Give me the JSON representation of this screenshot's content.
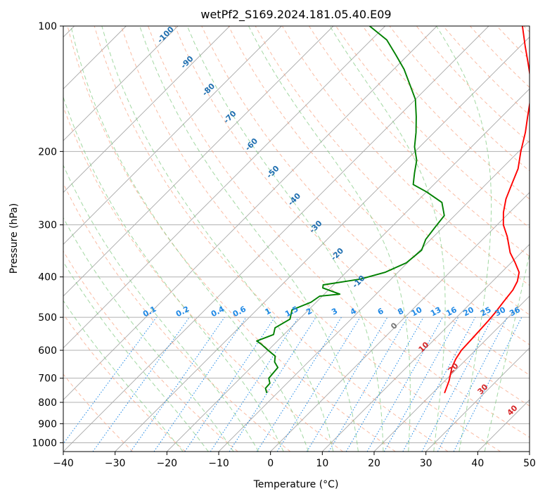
{
  "chart_data": {
    "type": "line",
    "title": "wetPf2_S169.2024.181.05.40.E09",
    "xlabel": "Temperature (°C)",
    "ylabel": "Pressure (hPa)",
    "xlim": [
      -40,
      50
    ],
    "ylim": [
      1050,
      100
    ],
    "y_scale": "log",
    "x_ticks": [
      -40,
      -30,
      -20,
      -10,
      0,
      10,
      20,
      30,
      40,
      50
    ],
    "y_ticks": [
      100,
      200,
      300,
      400,
      500,
      600,
      700,
      800,
      900,
      1000
    ],
    "grid": true,
    "skew": "skew-T",
    "series": [
      {
        "color": "#ff0000",
        "points": [
          [
            22.3,
            760
          ],
          [
            20.8,
            710
          ],
          [
            18.8,
            660
          ],
          [
            17.9,
            630
          ],
          [
            17.3,
            600
          ],
          [
            17.1,
            560
          ],
          [
            16.8,
            510
          ],
          [
            16.6,
            490
          ],
          [
            16.1,
            460
          ],
          [
            15.6,
            430
          ],
          [
            14.8,
            410
          ],
          [
            13.4,
            390
          ],
          [
            10.8,
            370
          ],
          [
            7.9,
            350
          ],
          [
            4.2,
            320
          ],
          [
            1.2,
            300
          ],
          [
            -1.2,
            280
          ],
          [
            -3.3,
            260
          ],
          [
            -5.0,
            240
          ],
          [
            -6.8,
            220
          ],
          [
            -9.6,
            200
          ],
          [
            -12.4,
            180
          ],
          [
            -15.0,
            165
          ],
          [
            -17.8,
            150
          ],
          [
            -21.4,
            135
          ],
          [
            -25.5,
            122
          ],
          [
            -29.0,
            112
          ],
          [
            -33.5,
            100
          ]
        ]
      },
      {
        "color": "#008000",
        "points": [
          [
            -12.0,
            760
          ],
          [
            -13.2,
            740
          ],
          [
            -13.3,
            720
          ],
          [
            -14.5,
            700
          ],
          [
            -14.8,
            660
          ],
          [
            -16.5,
            640
          ],
          [
            -17.5,
            620
          ],
          [
            -20.0,
            600
          ],
          [
            -22.5,
            580
          ],
          [
            -24.0,
            570
          ],
          [
            -22.0,
            550
          ],
          [
            -23.0,
            530
          ],
          [
            -21.8,
            505
          ],
          [
            -23.2,
            480
          ],
          [
            -21.0,
            460
          ],
          [
            -20.5,
            445
          ],
          [
            -17.0,
            440
          ],
          [
            -21.5,
            425
          ],
          [
            -22.0,
            418
          ],
          [
            -16.0,
            405
          ],
          [
            -12.5,
            390
          ],
          [
            -10.2,
            370
          ],
          [
            -9.7,
            345
          ],
          [
            -11.0,
            325
          ],
          [
            -11.5,
            305
          ],
          [
            -12.0,
            285
          ],
          [
            -15.0,
            265
          ],
          [
            -20.0,
            250
          ],
          [
            -24.0,
            240
          ],
          [
            -26.0,
            225
          ],
          [
            -28.0,
            210
          ],
          [
            -31.0,
            195
          ],
          [
            -33.5,
            180
          ],
          [
            -36.5,
            165
          ],
          [
            -40.0,
            150
          ],
          [
            -44.0,
            138
          ],
          [
            -48.0,
            127
          ],
          [
            -52.5,
            117
          ],
          [
            -57.0,
            108
          ],
          [
            -63.0,
            100
          ]
        ]
      }
    ],
    "dry_adiabat_labels": [
      "0",
      "10",
      "20",
      "30",
      "40"
    ],
    "moist_adiabat_labels": [
      "-100",
      "-90",
      "-80",
      "-70",
      "-60",
      "-50",
      "-40",
      "-30",
      "-20",
      "-10"
    ],
    "mixing_ratio_labels": [
      "0.1",
      "0.2",
      "0.4",
      "0.6",
      "1",
      "1.5",
      "2",
      "3",
      "4",
      "6",
      "8",
      "10",
      "13",
      "16",
      "20",
      "25",
      "30",
      "36"
    ],
    "colors": {
      "temperature": "#ff0000",
      "dewpoint": "#008000",
      "dry_adiabat": "#f8a07e",
      "moist_adiabat": "#7cc77c",
      "mixing_ratio": "#1e88e5",
      "isotherm": "#888888",
      "moist_label": "#1f6fb0",
      "dry_label": "#d62728",
      "mixing_label": "#1e88e5"
    }
  }
}
